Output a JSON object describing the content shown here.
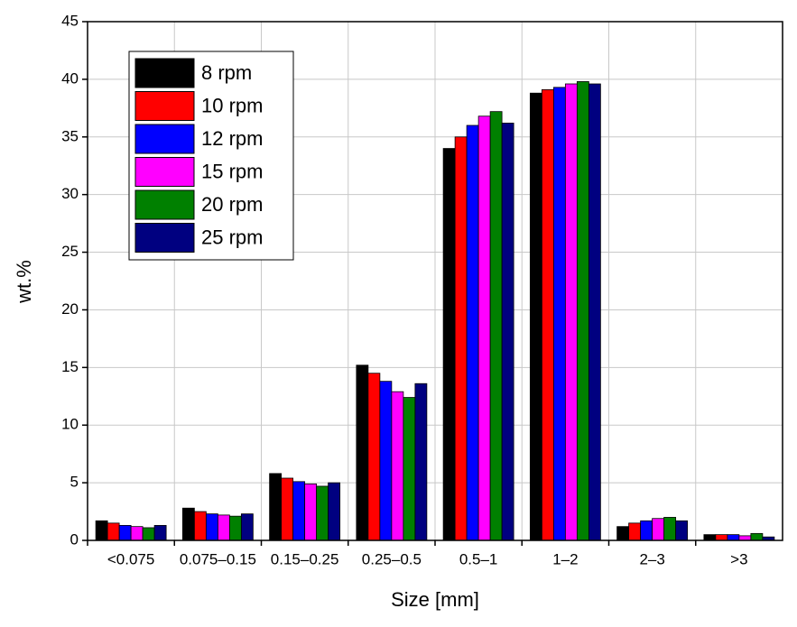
{
  "chart_data": {
    "type": "bar",
    "x_label": "Size [mm]",
    "y_label": "wt.%",
    "categories": [
      "<0.075",
      "0.075–0.15",
      "0.15–0.25",
      "0.25–0.5",
      "0.5–1",
      "1–2",
      "2–3",
      ">3"
    ],
    "series": [
      {
        "name": "8 rpm",
        "color": "#000000",
        "values": [
          1.7,
          2.8,
          5.8,
          15.2,
          34.0,
          38.8,
          1.2,
          0.5
        ]
      },
      {
        "name": "10 rpm",
        "color": "#ff0000",
        "values": [
          1.5,
          2.5,
          5.4,
          14.5,
          35.0,
          39.1,
          1.5,
          0.5
        ]
      },
      {
        "name": "12 rpm",
        "color": "#0000ff",
        "values": [
          1.3,
          2.3,
          5.1,
          13.8,
          36.0,
          39.3,
          1.7,
          0.5
        ]
      },
      {
        "name": "15 rpm",
        "color": "#ff00ff",
        "values": [
          1.2,
          2.2,
          4.9,
          12.9,
          36.8,
          39.6,
          1.9,
          0.4
        ]
      },
      {
        "name": "20 rpm",
        "color": "#008000",
        "values": [
          1.1,
          2.1,
          4.7,
          12.4,
          37.2,
          39.8,
          2.0,
          0.6
        ]
      },
      {
        "name": "25 rpm",
        "color": "#000080",
        "values": [
          1.3,
          2.3,
          5.0,
          13.6,
          36.2,
          39.6,
          1.7,
          0.3
        ]
      }
    ],
    "ylim": [
      0,
      45
    ],
    "yticks": [
      0,
      5,
      10,
      15,
      20,
      25,
      30,
      35,
      40,
      45
    ],
    "grid": true,
    "legend": "top-left"
  }
}
